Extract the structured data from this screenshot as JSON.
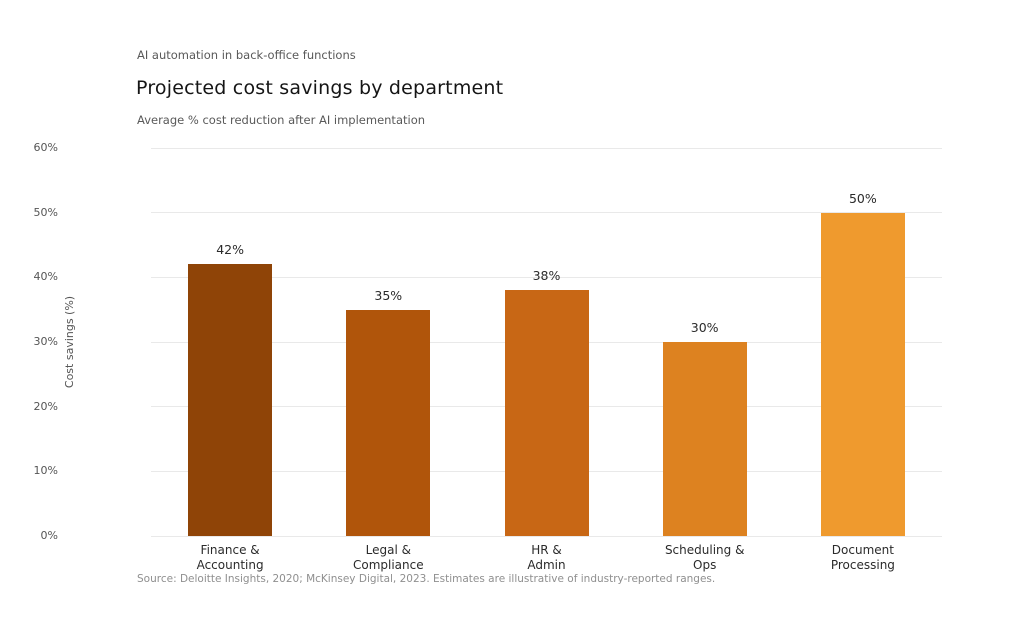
{
  "header": {
    "eyebrow": "AI automation in back-office functions",
    "title": "Projected cost savings by department",
    "subtitle": "Average % cost reduction after AI implementation"
  },
  "chart_data": {
    "type": "bar",
    "title": "Projected cost savings by department",
    "xlabel": "",
    "ylabel": "Cost savings (%)",
    "categories": [
      "Finance & Accounting",
      "Legal & Compliance",
      "HR & Admin",
      "Scheduling & Ops",
      "Document Processing"
    ],
    "category_lines": [
      [
        "Finance &",
        "Accounting"
      ],
      [
        "Legal &",
        "Compliance"
      ],
      [
        "HR &",
        "Admin"
      ],
      [
        "Scheduling &",
        "Ops"
      ],
      [
        "Document",
        "Processing"
      ]
    ],
    "values": [
      42,
      35,
      38,
      30,
      50
    ],
    "value_labels": [
      "42%",
      "35%",
      "38%",
      "30%",
      "50%"
    ],
    "bar_colors": [
      "#8f4407",
      "#b0550b",
      "#c86715",
      "#dd8220",
      "#ef9a2e"
    ],
    "ylim": [
      0,
      60
    ],
    "ytick_values": [
      0,
      10,
      20,
      30,
      40,
      50,
      60
    ],
    "ytick_labels": [
      "0%",
      "10%",
      "20%",
      "30%",
      "40%",
      "50%",
      "60%"
    ],
    "grid": true,
    "legend": false
  },
  "footer": {
    "source": "Source: Deloitte Insights, 2020; McKinsey Digital, 2023. Estimates are illustrative of industry-reported ranges."
  }
}
